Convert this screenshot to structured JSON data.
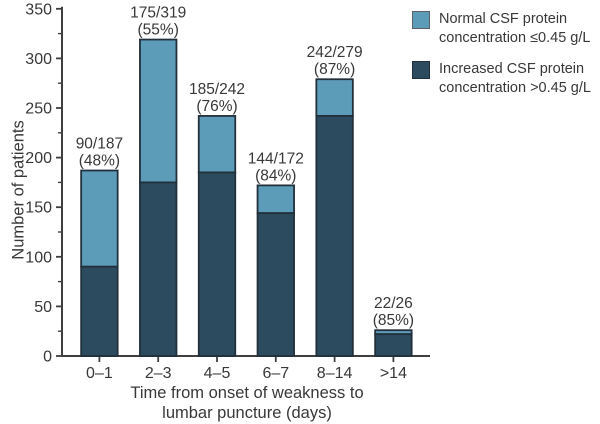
{
  "chart_data": {
    "type": "bar",
    "stacked": true,
    "categories": [
      "0–1",
      "2–3",
      "4–5",
      "6–7",
      "8–14",
      ">14"
    ],
    "series": [
      {
        "name": "Increased CSF protein concentration >0.45 g/L",
        "color": "#2C4B5E",
        "values": [
          90,
          175,
          185,
          144,
          242,
          22
        ]
      },
      {
        "name": "Normal CSF protein concentration ≤0.45 g/L",
        "color": "#5C9CB9",
        "values": [
          97,
          144,
          57,
          28,
          37,
          4
        ]
      }
    ],
    "totals": [
      187,
      319,
      242,
      172,
      279,
      26
    ],
    "bar_labels": [
      {
        "line1": "90/187",
        "line2": "(48%)"
      },
      {
        "line1": "175/319",
        "line2": "(55%)"
      },
      {
        "line1": "185/242",
        "line2": "(76%)"
      },
      {
        "line1": "144/172",
        "line2": "(84%)"
      },
      {
        "line1": "242/279",
        "line2": "(87%)"
      },
      {
        "line1": "22/26",
        "line2": "(85%)"
      }
    ],
    "xlabel": "Time from onset of weakness to\nlumbar puncture (days)",
    "ylabel": "Number of patients",
    "ylim": [
      0,
      350
    ],
    "ytick_step": 50,
    "yminor_step": 25,
    "yticks": [
      "0",
      "50",
      "100",
      "150",
      "200",
      "250",
      "300",
      "350"
    ],
    "grid": false,
    "legend_position": "top-right"
  },
  "legend": {
    "items": [
      {
        "label": "Normal CSF protein concentration ≤0.45 g/L",
        "color": "#5C9CB9"
      },
      {
        "label": "Increased CSF protein concentration >0.45 g/L",
        "color": "#2C4B5E"
      }
    ]
  },
  "colors": {
    "axis": "#3F3F3F",
    "text": "#383838",
    "bar_outline": "#22303C",
    "background": "#FFFFFF"
  }
}
